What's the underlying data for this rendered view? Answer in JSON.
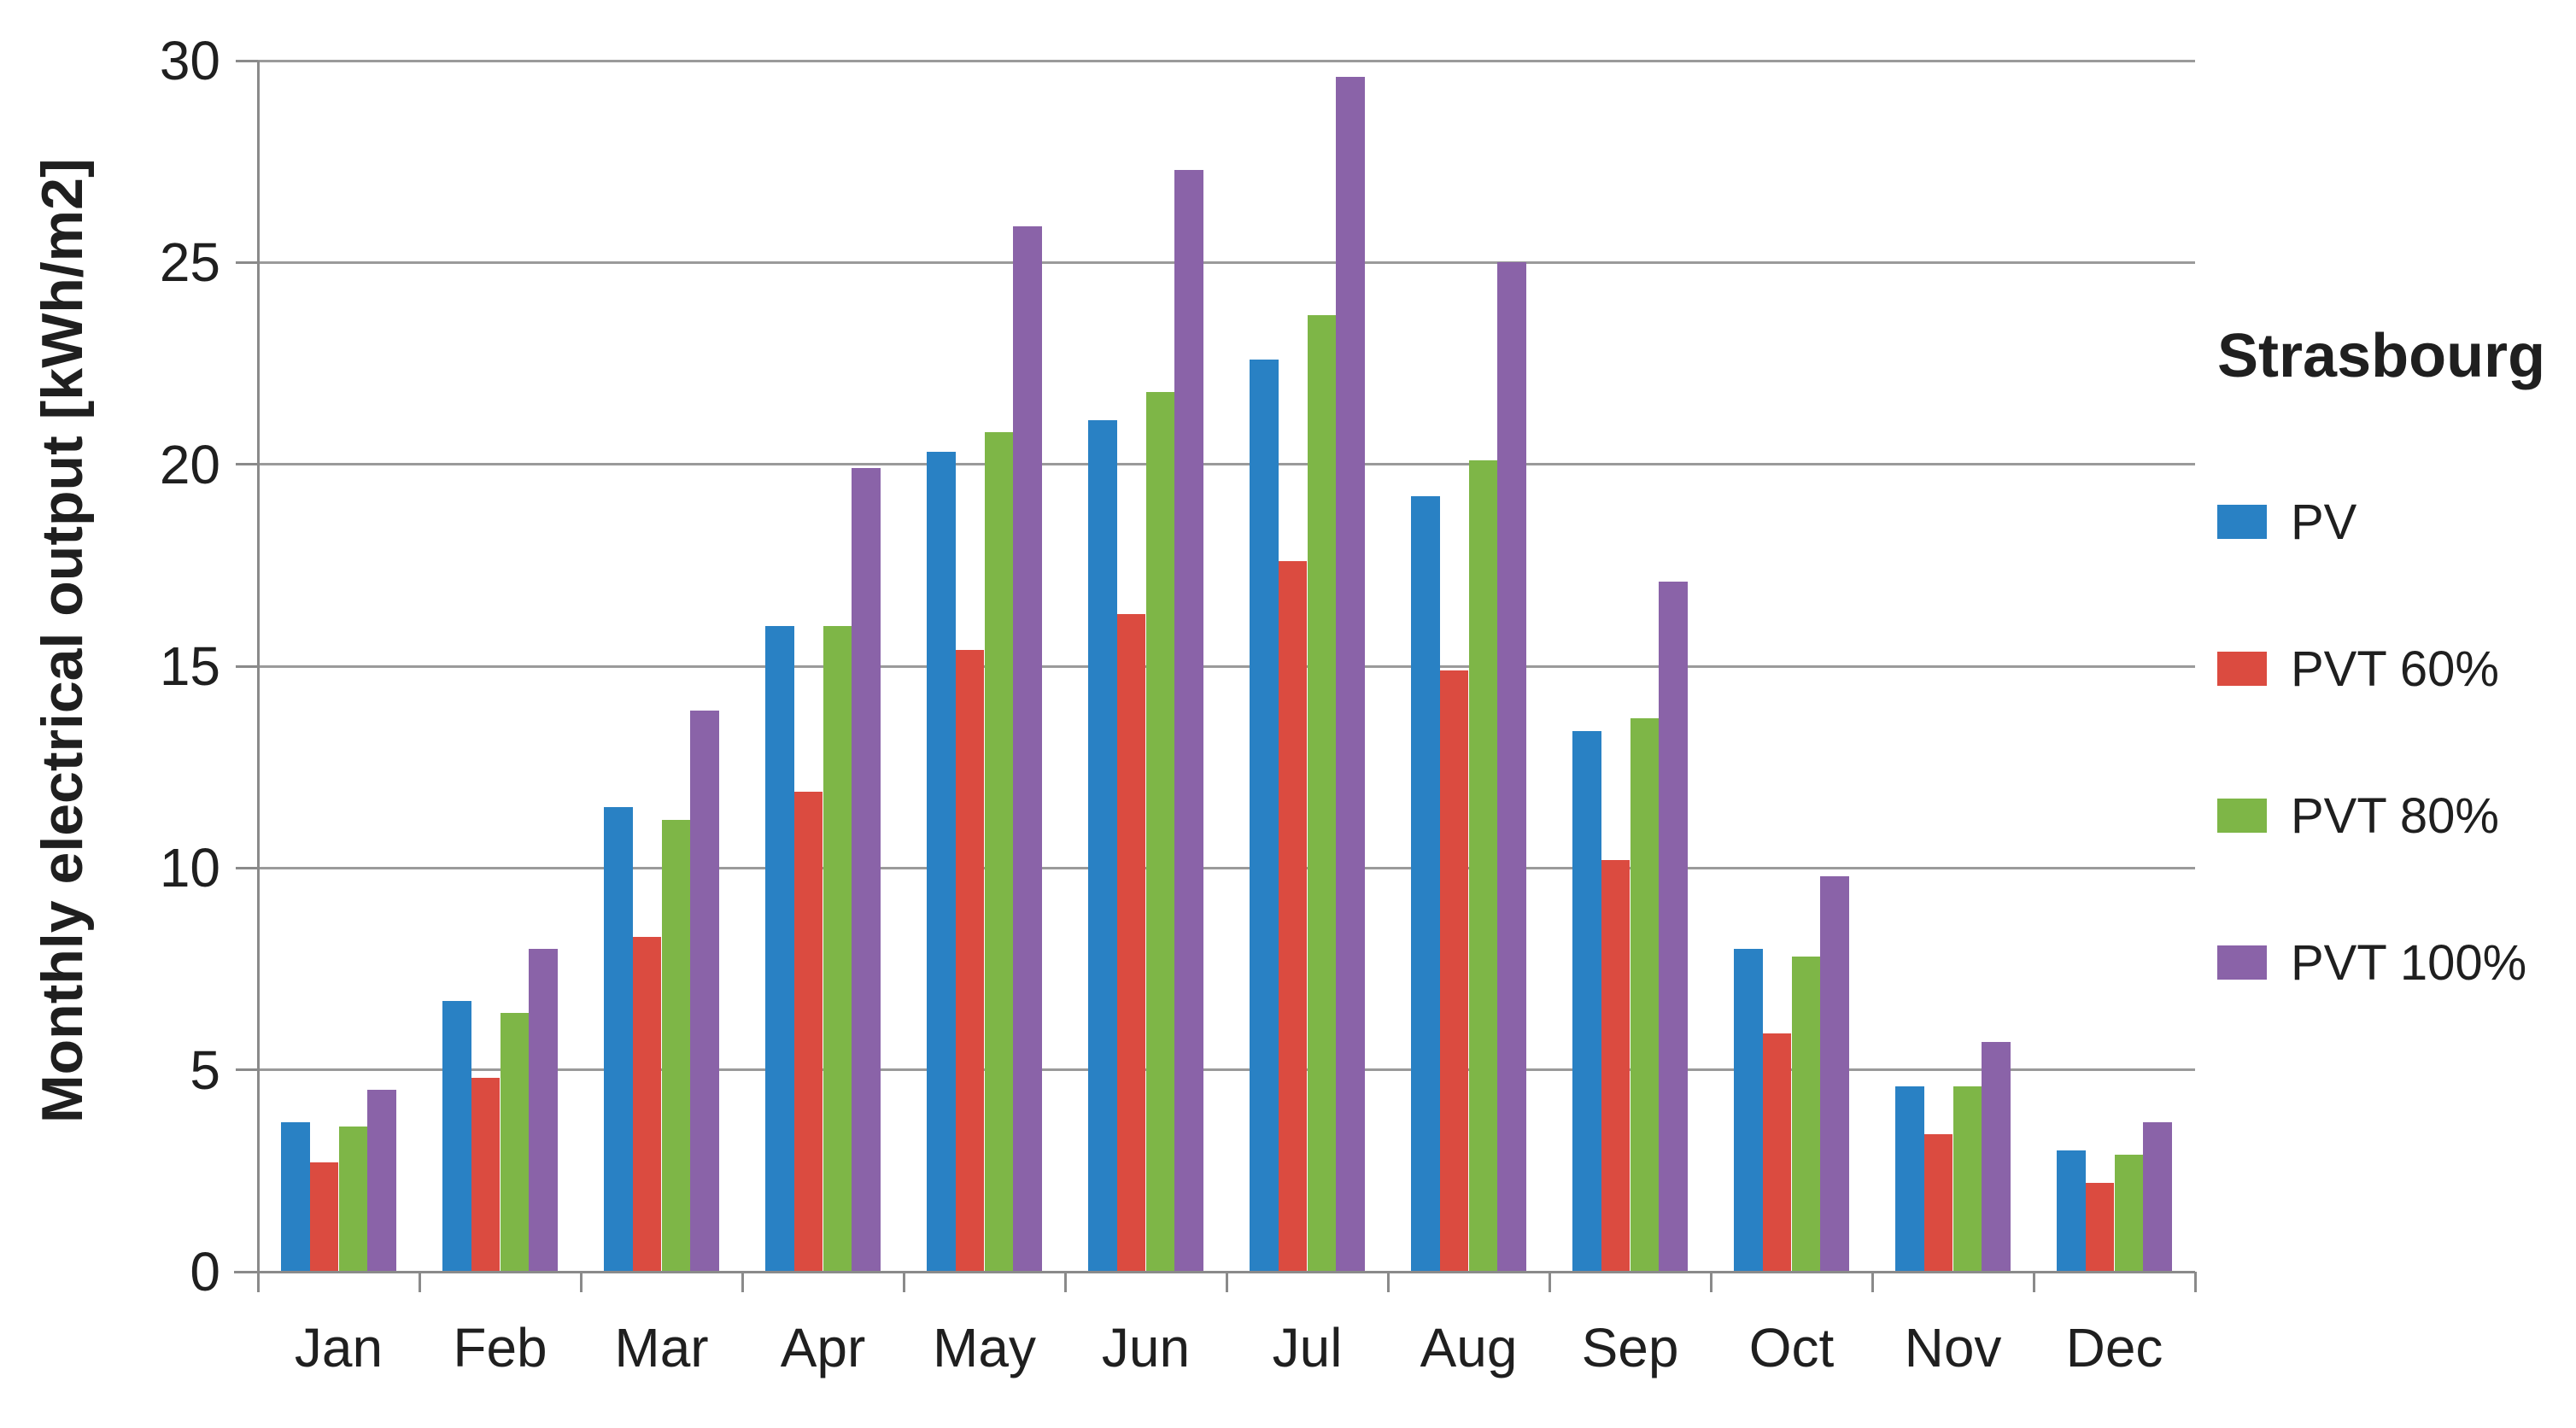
{
  "chart_data": {
    "type": "bar",
    "title": "Strasbourg",
    "ylabel": "Monthly electrical output [kWh/m2]",
    "xlabel": "",
    "ylim": [
      0,
      30
    ],
    "yticks": [
      0,
      5,
      10,
      15,
      20,
      25,
      30
    ],
    "grid": true,
    "legend_position": "right",
    "categories": [
      "Jan",
      "Feb",
      "Mar",
      "Apr",
      "May",
      "Jun",
      "Jul",
      "Aug",
      "Sep",
      "Oct",
      "Nov",
      "Dec"
    ],
    "series": [
      {
        "name": "PV",
        "color": "#2981C4",
        "values": [
          3.7,
          6.7,
          11.5,
          16.0,
          20.3,
          21.1,
          22.6,
          19.2,
          13.4,
          8.0,
          4.6,
          3.0
        ]
      },
      {
        "name": "PVT 60%",
        "color": "#DB4B40",
        "values": [
          2.7,
          4.8,
          8.3,
          11.9,
          15.4,
          16.3,
          17.6,
          14.9,
          10.2,
          5.9,
          3.4,
          2.2
        ]
      },
      {
        "name": "PVT 80%",
        "color": "#7EB647",
        "values": [
          3.6,
          6.4,
          11.2,
          16.0,
          20.8,
          21.8,
          23.7,
          20.1,
          13.7,
          7.8,
          4.6,
          2.9
        ]
      },
      {
        "name": "PVT 100%",
        "color": "#8A63A8",
        "values": [
          4.5,
          8.0,
          13.9,
          19.9,
          25.9,
          27.3,
          29.6,
          25.0,
          17.1,
          9.8,
          5.7,
          3.7
        ]
      }
    ],
    "colors": {
      "grid": "#9a9a9a",
      "axis": "#8a8a8a",
      "text": "#1f1f1f",
      "background": "#ffffff"
    }
  }
}
